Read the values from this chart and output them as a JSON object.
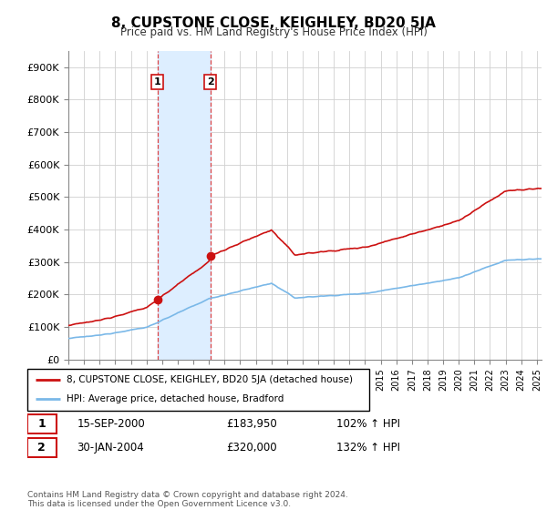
{
  "title": "8, CUPSTONE CLOSE, KEIGHLEY, BD20 5JA",
  "subtitle": "Price paid vs. HM Land Registry's House Price Index (HPI)",
  "hpi_label": "HPI: Average price, detached house, Bradford",
  "property_label": "8, CUPSTONE CLOSE, KEIGHLEY, BD20 5JA (detached house)",
  "sale1_date": "15-SEP-2000",
  "sale1_price": "£183,950",
  "sale1_hpi": "102% ↑ HPI",
  "sale1_year": 2000.71,
  "sale1_value": 183950,
  "sale2_date": "30-JAN-2004",
  "sale2_price": "£320,000",
  "sale2_hpi": "132% ↑ HPI",
  "sale2_year": 2004.08,
  "sale2_value": 320000,
  "hpi_color": "#7ab8e8",
  "property_color": "#cc1111",
  "highlight_fill": "#ddeeff",
  "highlight_edge": "#dd4444",
  "ylim_min": 0,
  "ylim_max": 950000,
  "xmin": 1995.0,
  "xmax": 2025.3,
  "footnote": "Contains HM Land Registry data © Crown copyright and database right 2024.\nThis data is licensed under the Open Government Licence v3.0."
}
